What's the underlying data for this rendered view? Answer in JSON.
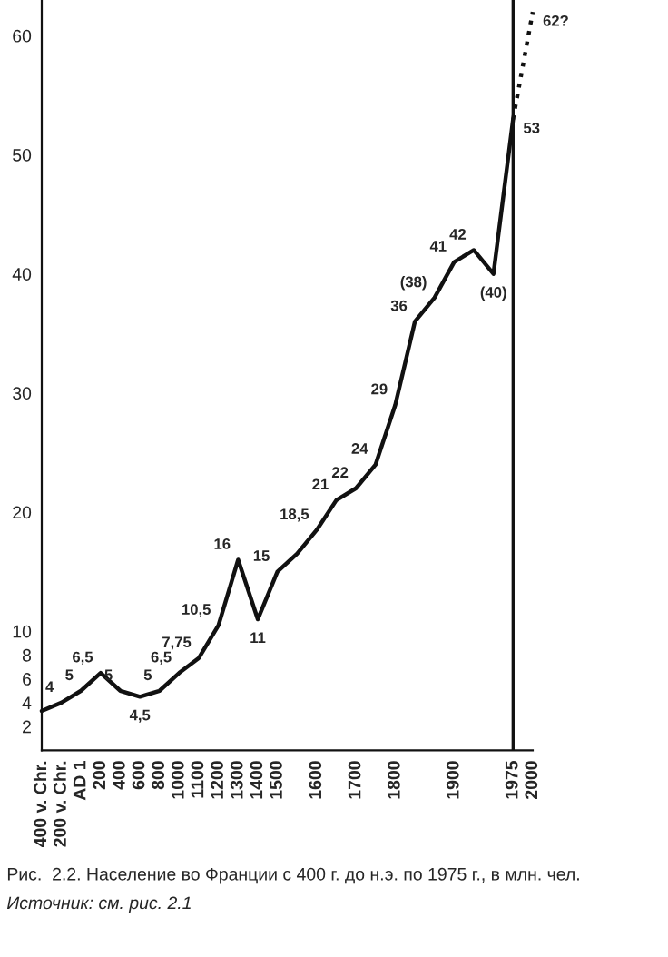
{
  "chart_data": {
    "type": "line",
    "title": "Рис.  2.2. Население во Франции с 400 г. до н.э. по 1975 г., в млн. чел.",
    "annotations": [
      "Источник: см. рис. 2.1"
    ],
    "categories": [
      "400 v. Chr.",
      "200 v. Chr.",
      "AD 1",
      "200",
      "400",
      "600",
      "800",
      "1000",
      "1100",
      "1200",
      "1300",
      "1400",
      "1500",
      null,
      "1600",
      null,
      "1700",
      null,
      "1800",
      null,
      null,
      "1900",
      null,
      null,
      "1975",
      "2000"
    ],
    "series": [
      {
        "color": "#111111",
        "line_style": "solid",
        "values": [
          3.3,
          4,
          5,
          6.5,
          5,
          4.5,
          5,
          6.5,
          7.75,
          10.5,
          16,
          11,
          15,
          16.5,
          18.5,
          21,
          22,
          24,
          29,
          36,
          38,
          41,
          42,
          40,
          53,
          null
        ],
        "value_labels": [
          null,
          "4",
          "5",
          "6,5",
          "5",
          "4,5",
          "5",
          "6,5",
          "7,75",
          "10,5",
          "16",
          "11",
          "15",
          null,
          "18,5",
          "21",
          "22",
          "24",
          "29",
          "36",
          "(38)",
          "41",
          "42",
          "(40)",
          "53",
          null
        ]
      },
      {
        "color": "#111111",
        "line_style": "dotted",
        "values": [
          null,
          null,
          null,
          null,
          null,
          null,
          null,
          null,
          null,
          null,
          null,
          null,
          null,
          null,
          null,
          null,
          null,
          null,
          null,
          null,
          null,
          null,
          null,
          null,
          53,
          62
        ],
        "value_labels": [
          null,
          null,
          null,
          null,
          null,
          null,
          null,
          null,
          null,
          null,
          null,
          null,
          null,
          null,
          null,
          null,
          null,
          null,
          null,
          null,
          null,
          null,
          null,
          null,
          null,
          "62?"
        ]
      }
    ],
    "ylim": [
      0,
      63
    ],
    "yticks": [
      2,
      4,
      6,
      8,
      10,
      20,
      30,
      40,
      50,
      60
    ],
    "ref_lines": [
      {
        "axis": "x",
        "value": "1975",
        "color": "#111111",
        "line_style": "solid"
      }
    ],
    "grid": false,
    "legend": false
  }
}
